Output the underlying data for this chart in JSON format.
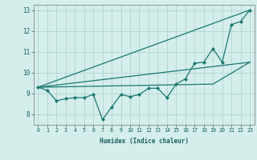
{
  "xlabel": "Humidex (Indice chaleur)",
  "background_color": "#d4eeec",
  "line_color": "#1a7870",
  "grid_color": "#b8d8d4",
  "xlim": [
    -0.5,
    23.5
  ],
  "ylim": [
    7.5,
    13.25
  ],
  "x_ticks": [
    0,
    1,
    2,
    3,
    4,
    5,
    6,
    7,
    8,
    9,
    10,
    11,
    12,
    13,
    14,
    15,
    16,
    17,
    18,
    19,
    20,
    21,
    22,
    23
  ],
  "y_ticks": [
    8,
    9,
    10,
    11,
    12,
    13
  ],
  "wavy_x": [
    0,
    1,
    2,
    3,
    4,
    5,
    6,
    7,
    8,
    9,
    10,
    11,
    12,
    13,
    14,
    15,
    16,
    17,
    18,
    19,
    20,
    21,
    22,
    23
  ],
  "wavy_y": [
    9.3,
    9.15,
    8.65,
    8.75,
    8.8,
    8.8,
    8.95,
    7.75,
    8.35,
    8.95,
    8.85,
    8.95,
    9.25,
    9.25,
    8.8,
    9.45,
    9.7,
    10.45,
    10.5,
    11.15,
    10.5,
    12.3,
    12.45,
    13.0
  ],
  "line1_x": [
    0,
    23
  ],
  "line1_y": [
    9.3,
    13.0
  ],
  "line2_x": [
    0,
    23
  ],
  "line2_y": [
    9.3,
    10.5
  ],
  "line3_x": [
    0,
    19,
    23
  ],
  "line3_y": [
    9.3,
    9.45,
    10.5
  ]
}
